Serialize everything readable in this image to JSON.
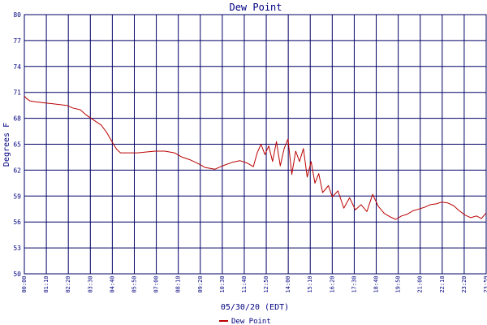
{
  "chart_data": {
    "type": "line",
    "title": "Dew Point",
    "xlabel": "05/30/20 (EDT)",
    "ylabel": "Degrees F",
    "ylim": [
      50,
      80
    ],
    "yticks": [
      50,
      53,
      56,
      59,
      62,
      65,
      68,
      71,
      74,
      77,
      80
    ],
    "xticks": [
      "00:00",
      "01:10",
      "02:20",
      "03:30",
      "04:40",
      "05:50",
      "07:00",
      "08:10",
      "09:20",
      "10:30",
      "11:40",
      "12:50",
      "14:00",
      "15:10",
      "16:20",
      "17:30",
      "18:40",
      "19:50",
      "21:00",
      "22:10",
      "23:20",
      "23:59"
    ],
    "grid": true,
    "legend": "bottom-center",
    "colors": {
      "series": "#bb0000",
      "grid": "#000066",
      "text": "#000080"
    },
    "series": [
      {
        "name": "Dew Point",
        "x_hours": [
          0.0,
          0.1,
          0.3,
          0.6,
          1.0,
          1.4,
          1.8,
          2.2,
          2.5,
          2.9,
          3.2,
          3.6,
          4.0,
          4.3,
          4.6,
          4.8,
          5.0,
          5.4,
          5.9,
          6.3,
          6.8,
          7.3,
          7.8,
          8.2,
          8.6,
          9.0,
          9.4,
          9.9,
          10.3,
          10.8,
          11.2,
          11.6,
          11.9,
          12.1,
          12.3,
          12.5,
          12.7,
          12.9,
          13.1,
          13.3,
          13.5,
          13.7,
          13.9,
          14.1,
          14.3,
          14.5,
          14.7,
          14.9,
          15.1,
          15.3,
          15.5,
          15.8,
          16.0,
          16.3,
          16.6,
          16.9,
          17.2,
          17.5,
          17.8,
          18.1,
          18.4,
          18.7,
          19.0,
          19.3,
          19.6,
          19.9,
          20.2,
          20.5,
          20.8,
          21.1,
          21.4,
          21.7,
          22.0,
          22.3,
          22.6,
          22.9,
          23.2,
          23.5,
          23.75,
          23.98
        ],
        "values": [
          70.6,
          70.3,
          70.0,
          69.9,
          69.8,
          69.7,
          69.6,
          69.5,
          69.2,
          69.0,
          68.4,
          67.8,
          67.2,
          66.3,
          65.1,
          64.4,
          64.0,
          64.0,
          64.0,
          64.1,
          64.2,
          64.2,
          64.0,
          63.5,
          63.2,
          62.8,
          62.3,
          62.1,
          62.5,
          62.9,
          63.1,
          62.8,
          62.4,
          64.0,
          65.0,
          63.8,
          64.8,
          63.0,
          65.3,
          62.5,
          64.5,
          65.6,
          61.5,
          64.2,
          63.0,
          64.5,
          61.2,
          63.0,
          60.5,
          61.6,
          59.4,
          60.2,
          58.9,
          59.6,
          57.6,
          58.8,
          57.4,
          58.0,
          57.2,
          59.2,
          57.8,
          57.0,
          56.6,
          56.3,
          56.7,
          56.9,
          57.3,
          57.5,
          57.7,
          58.0,
          58.1,
          58.3,
          58.2,
          57.9,
          57.3,
          56.8,
          56.5,
          56.7,
          56.4,
          57.0
        ]
      }
    ]
  }
}
